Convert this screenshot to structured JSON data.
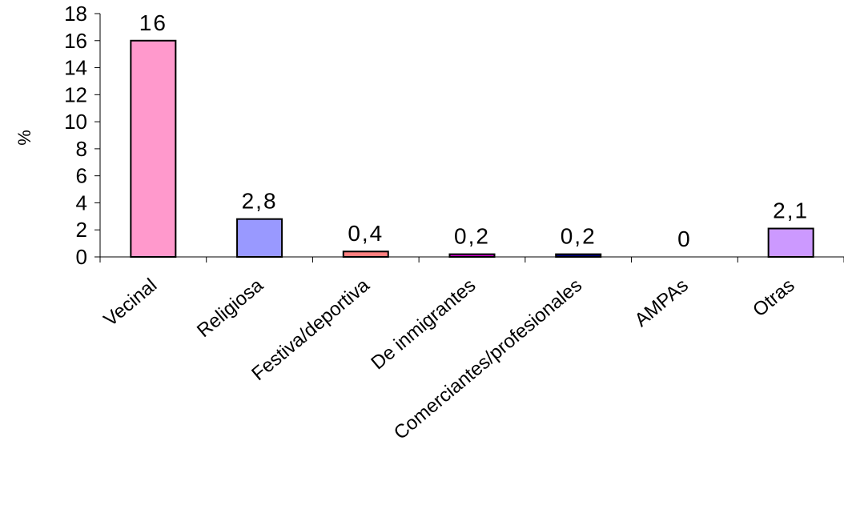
{
  "chart_data": {
    "type": "bar",
    "categories": [
      "Vecinal",
      "Religiosa",
      "Festiva/deportiva",
      "De inmigrantes",
      "Comerciantes/profesionales",
      "AMPAs",
      "Otras"
    ],
    "values": [
      16,
      2.8,
      0.4,
      0.2,
      0.2,
      0,
      2.1
    ],
    "data_labels": [
      "16",
      "2,8",
      "0,4",
      "0,2",
      "0,2",
      "0",
      "2,1"
    ],
    "bar_colors": [
      "#ff99cc",
      "#9999ff",
      "#ff8080",
      "#cc00cc",
      "#000080",
      "#ffffff",
      "#cc99ff"
    ],
    "ylabel": "%",
    "ylim": [
      0,
      18
    ],
    "yticks": [
      0,
      2,
      4,
      6,
      8,
      10,
      12,
      14,
      16,
      18
    ],
    "grid": false,
    "legend": "none"
  }
}
